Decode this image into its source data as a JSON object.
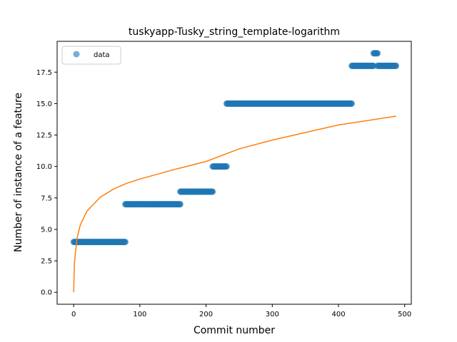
{
  "chart_data": {
    "type": "scatter",
    "title": "tuskyapp-Tusky_string_template-logarithm",
    "xlabel": "Commit number",
    "ylabel": "Number of instance of a feature",
    "xlim": [
      -25,
      510
    ],
    "ylim": [
      -0.95,
      19.95
    ],
    "xticks": [
      0,
      100,
      200,
      300,
      400,
      500
    ],
    "yticks": [
      0.0,
      2.5,
      5.0,
      7.5,
      10.0,
      12.5,
      15.0,
      17.5
    ],
    "xtick_labels": [
      "0",
      "100",
      "200",
      "300",
      "400",
      "500"
    ],
    "ytick_labels": [
      "0.0",
      "2.5",
      "5.0",
      "7.5",
      "10.0",
      "12.5",
      "15.0",
      "17.5"
    ],
    "grid": false,
    "legend": {
      "placement": "top-left",
      "entries": [
        "data"
      ]
    },
    "series": [
      {
        "name": "data",
        "kind": "scatter",
        "color": "#1f77b4",
        "segments": [
          {
            "x_start": 0,
            "x_end": 78,
            "y": 4
          },
          {
            "x_start": 78,
            "x_end": 161,
            "y": 7
          },
          {
            "x_start": 161,
            "x_end": 210,
            "y": 8
          },
          {
            "x_start": 210,
            "x_end": 231,
            "y": 10
          },
          {
            "x_start": 231,
            "x_end": 420,
            "y": 15
          },
          {
            "x_start": 420,
            "x_end": 453,
            "y": 18
          },
          {
            "x_start": 453,
            "x_end": 459,
            "y": 19
          },
          {
            "x_start": 459,
            "x_end": 487,
            "y": 18
          }
        ]
      },
      {
        "kind": "line",
        "color": "#ff7f0e",
        "function": "logarithmic",
        "x_range": [
          0,
          487
        ],
        "points": [
          [
            0,
            0.0
          ],
          [
            1,
            2.24
          ],
          [
            5,
            4.28
          ],
          [
            10,
            5.35
          ],
          [
            20,
            6.45
          ],
          [
            40,
            7.55
          ],
          [
            60,
            8.2
          ],
          [
            80,
            8.66
          ],
          [
            100,
            9.0
          ],
          [
            150,
            9.73
          ],
          [
            200,
            10.4
          ],
          [
            250,
            11.4
          ],
          [
            300,
            12.1
          ],
          [
            350,
            12.7
          ],
          [
            400,
            13.3
          ],
          [
            487,
            14.0
          ]
        ]
      }
    ]
  }
}
